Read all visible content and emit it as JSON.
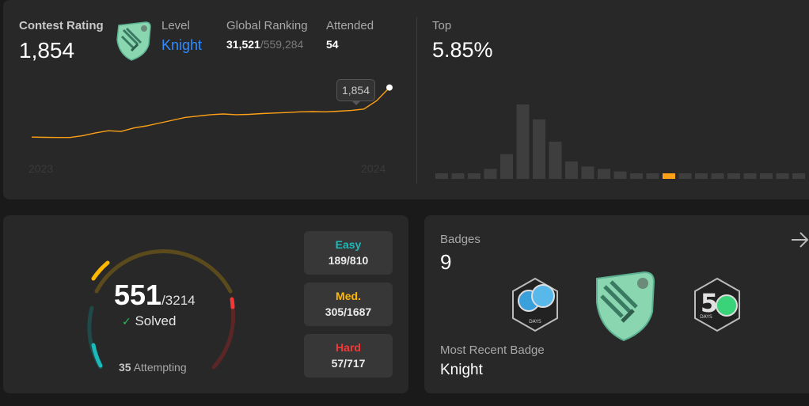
{
  "contest": {
    "rating_label": "Contest Rating",
    "rating": "1,854",
    "level_label": "Level",
    "level": "Knight",
    "ranking_label": "Global Ranking",
    "ranking": "31,521",
    "ranking_total": "/559,284",
    "attended_label": "Attended",
    "attended": "54",
    "top_label": "Top",
    "top_value": "5.85%",
    "year_start": "2023",
    "year_end": "2024",
    "tooltip": "1,854",
    "line_color": "#ffa116",
    "highlight_color": "#ffa116"
  },
  "chart_data": [
    {
      "type": "line",
      "title": "",
      "xlabel": "",
      "ylabel": "",
      "x_labels": [
        "2023",
        "2024"
      ],
      "values": [
        1500,
        1498,
        1497,
        1497,
        1510,
        1530,
        1545,
        1540,
        1565,
        1580,
        1600,
        1620,
        1640,
        1650,
        1660,
        1665,
        1660,
        1662,
        1668,
        1672,
        1675,
        1680,
        1682,
        1680,
        1685,
        1690,
        1700,
        1760,
        1854
      ],
      "highlight": {
        "label": "1,854",
        "value": 1854
      }
    },
    {
      "type": "bar",
      "title": "",
      "xlabel": "",
      "ylabel": "",
      "values": [
        2,
        2,
        2,
        4,
        10,
        30,
        24,
        15,
        7,
        5,
        4,
        3,
        2,
        2,
        2,
        2,
        2,
        2,
        2,
        2,
        2,
        2,
        2
      ],
      "highlight_index": 14
    }
  ],
  "progress": {
    "solved": "551",
    "total": "/3214",
    "solved_label": "Solved",
    "attempting_count": "35",
    "attempting_label": "Attempting",
    "easy": {
      "label": "Easy",
      "count": "189/810",
      "color": "#1cbaba"
    },
    "medium": {
      "label": "Med.",
      "count": "305/1687",
      "color": "#ffb700"
    },
    "hard": {
      "label": "Hard",
      "count": "57/717",
      "color": "#f63737"
    }
  },
  "badges": {
    "label": "Badges",
    "count": "9",
    "recent_label": "Most Recent Badge",
    "recent": "Knight",
    "items": [
      {
        "icon": "days-badge-icon",
        "text": "DAYS"
      },
      {
        "icon": "knight-badge-icon"
      },
      {
        "icon": "50-days-badge-icon",
        "text": "DAYS"
      }
    ]
  }
}
